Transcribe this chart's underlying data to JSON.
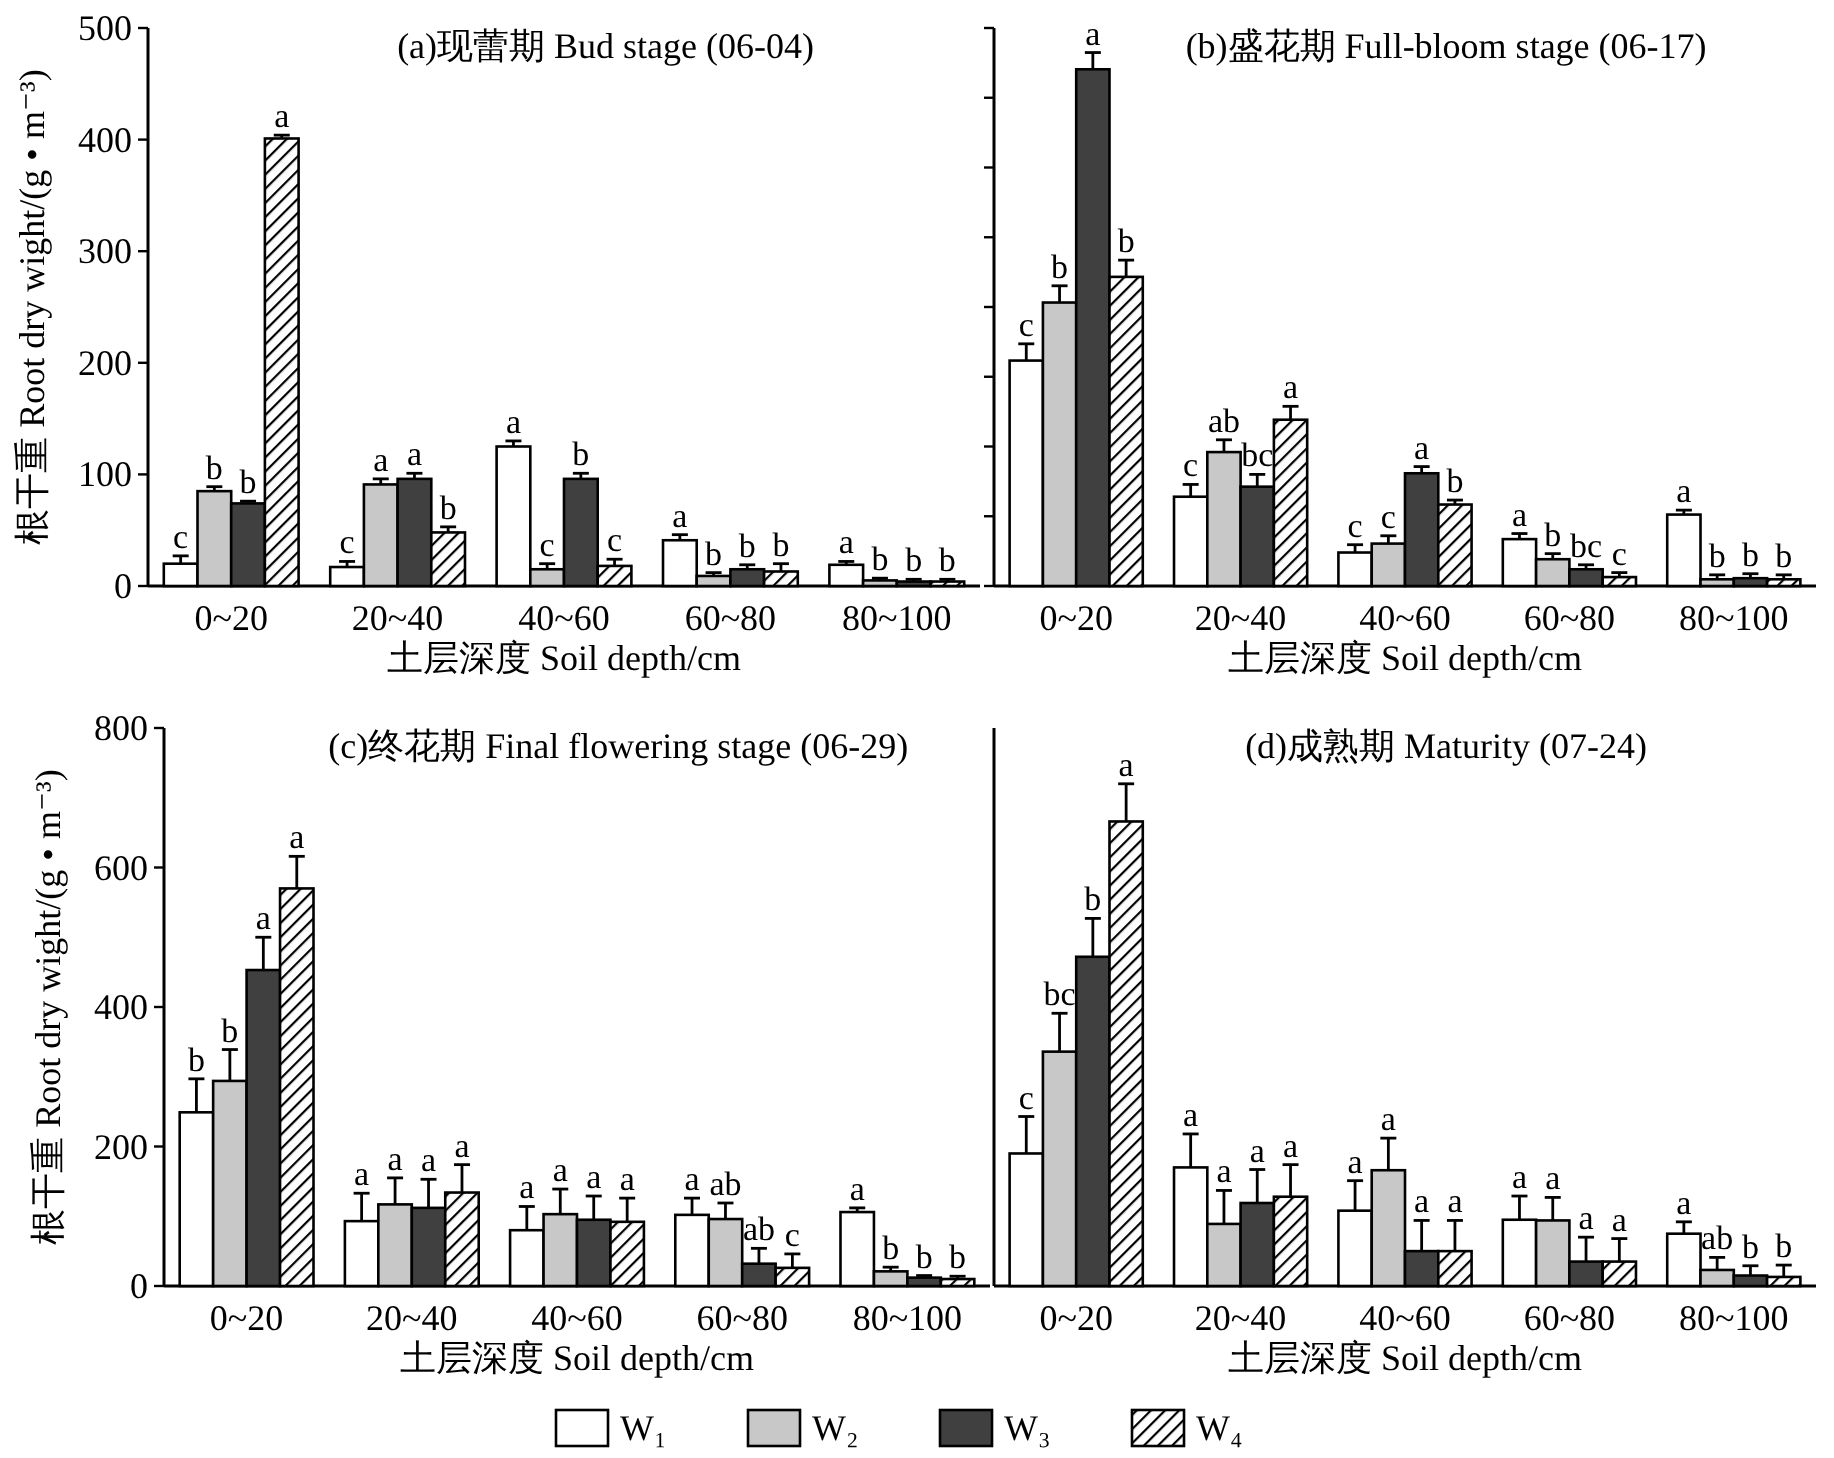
{
  "chart_data": [
    {
      "type": "bar",
      "title": "(a)现蕾期 Bud stage (06-04)",
      "xlabel": "土层深度 Soil depth/cm",
      "ylabel": "根干重 Root dry wight/(g • m⁻³)",
      "categories": [
        "0~20",
        "20~40",
        "40~60",
        "60~80",
        "80~100"
      ],
      "ylim": [
        0,
        500
      ],
      "yticks": [
        0,
        100,
        200,
        300,
        400,
        500
      ],
      "legend": "bottom",
      "series": [
        {
          "name": "W₁",
          "color": "#ffffff",
          "values": [
            20,
            17,
            125,
            41,
            19
          ],
          "errors": [
            [
              20,
              27
            ],
            [
              17,
              22
            ],
            [
              125,
              130
            ],
            [
              41,
              46
            ],
            [
              19,
              22
            ]
          ],
          "value_labels": [
            "c",
            "c",
            "a",
            "a",
            "a"
          ]
        },
        {
          "name": "W₂",
          "color": "#c8c8c8",
          "values": [
            85,
            91,
            15,
            9,
            5
          ],
          "errors": [
            [
              85,
              89
            ],
            [
              91,
              96
            ],
            [
              15,
              20
            ],
            [
              9,
              12
            ],
            [
              5,
              7
            ]
          ],
          "value_labels": [
            "b",
            "a",
            "c",
            "b",
            "b"
          ]
        },
        {
          "name": "W₃",
          "color": "#404040",
          "values": [
            74,
            96,
            96,
            15,
            4
          ],
          "errors": [
            [
              74,
              76
            ],
            [
              96,
              101
            ],
            [
              96,
              101
            ],
            [
              15,
              19
            ],
            [
              4,
              6
            ]
          ],
          "value_labels": [
            "b",
            "a",
            "b",
            "b",
            "b"
          ]
        },
        {
          "name": "W₄",
          "color": "#000000",
          "values": [
            401,
            48,
            18,
            13,
            4
          ],
          "errors": [
            [
              401,
              404
            ],
            [
              48,
              53
            ],
            [
              18,
              24
            ],
            [
              13,
              20
            ],
            [
              4,
              6
            ]
          ],
          "value_labels": [
            "a",
            "b",
            "c",
            "b",
            "b"
          ]
        }
      ]
    },
    {
      "type": "bar",
      "title": "(b)盛花期 Full-bloom stage (06-17)",
      "xlabel": "土层深度 Soil depth/cm",
      "categories": [
        "0~20",
        "20~40",
        "40~60",
        "60~80",
        "80~100"
      ],
      "ylim": [
        0,
        500
      ],
      "tick_labels": "x",
      "yticks": [
        {
          "value": 0,
          "label": null
        },
        {
          "value": 62.5,
          "label": null
        },
        {
          "value": 125,
          "label": null
        },
        {
          "value": 187.5,
          "label": null
        },
        {
          "value": 250,
          "label": null
        },
        {
          "value": 312.5,
          "label": null
        },
        {
          "value": 375,
          "label": null
        },
        {
          "value": 437.5,
          "label": null
        },
        {
          "value": 500,
          "label": null
        }
      ],
      "series": [
        {
          "color": "#ffffff",
          "values": [
            202,
            80,
            30,
            42,
            64
          ],
          "errors": [
            [
              202,
              217
            ],
            [
              80,
              91
            ],
            [
              30,
              37
            ],
            [
              42,
              47
            ],
            [
              64,
              68
            ]
          ],
          "value_labels": [
            "c",
            "c",
            "c",
            "a",
            "a"
          ]
        },
        {
          "color": "#c8c8c8",
          "values": [
            254,
            120,
            38,
            24,
            6
          ],
          "errors": [
            [
              254,
              269
            ],
            [
              120,
              131
            ],
            [
              38,
              45
            ],
            [
              24,
              29
            ],
            [
              6,
              10
            ]
          ],
          "value_labels": [
            "b",
            "ab",
            "c",
            "b",
            "b"
          ]
        },
        {
          "color": "#404040",
          "values": [
            463,
            89,
            101,
            15,
            7
          ],
          "errors": [
            [
              463,
              478
            ],
            [
              89,
              100
            ],
            [
              101,
              107
            ],
            [
              15,
              19
            ],
            [
              7,
              11
            ]
          ],
          "value_labels": [
            "a",
            "bc",
            "a",
            "bc",
            "b"
          ]
        },
        {
          "color": "#000000",
          "values": [
            277,
            149,
            73,
            8,
            6
          ],
          "errors": [
            [
              277,
              292
            ],
            [
              149,
              161
            ],
            [
              73,
              77
            ],
            [
              8,
              12
            ],
            [
              6,
              10
            ]
          ],
          "value_labels": [
            "b",
            "a",
            "b",
            "c",
            "b"
          ]
        }
      ]
    },
    {
      "type": "bar",
      "title": "(c)终花期 Final flowering stage (06-29)",
      "xlabel": "土层深度 Soil depth/cm",
      "ylabel": "根干重 Root dry wight/(g • m⁻³)",
      "categories": [
        "0~20",
        "20~40",
        "40~60",
        "60~80",
        "80~100"
      ],
      "ylim": [
        0,
        800
      ],
      "yticks": [
        0,
        200,
        400,
        600,
        800
      ],
      "series": [
        {
          "color": "#ffffff",
          "values": [
            249,
            93,
            80,
            102,
            106
          ],
          "errors": [
            [
              249,
              297
            ],
            [
              93,
              133
            ],
            [
              80,
              114
            ],
            [
              102,
              126
            ],
            [
              106,
              112
            ]
          ],
          "value_labels": [
            "b",
            "a",
            "a",
            "a",
            "a"
          ]
        },
        {
          "color": "#c8c8c8",
          "values": [
            294,
            117,
            103,
            96,
            21
          ],
          "errors": [
            [
              294,
              339
            ],
            [
              117,
              155
            ],
            [
              103,
              139
            ],
            [
              96,
              119
            ],
            [
              21,
              27
            ]
          ],
          "value_labels": [
            "b",
            "a",
            "a",
            "ab",
            "b"
          ]
        },
        {
          "color": "#404040",
          "values": [
            453,
            112,
            95,
            32,
            12
          ],
          "errors": [
            [
              453,
              500
            ],
            [
              112,
              153
            ],
            [
              95,
              129
            ],
            [
              32,
              54
            ],
            [
              12,
              15
            ]
          ],
          "value_labels": [
            "a",
            "a",
            "a",
            "ab",
            "b"
          ]
        },
        {
          "color": "#000000",
          "values": [
            570,
            134,
            92,
            26,
            10
          ],
          "errors": [
            [
              570,
              616
            ],
            [
              134,
              174
            ],
            [
              92,
              126
            ],
            [
              26,
              46
            ],
            [
              10,
              14
            ]
          ],
          "value_labels": [
            "a",
            "a",
            "a",
            "c",
            "b"
          ]
        }
      ]
    },
    {
      "type": "bar",
      "title": "(d)成熟期 Maturity (07-24)",
      "xlabel": "土层深度 Soil depth/cm",
      "categories": [
        "0~20",
        "20~40",
        "40~60",
        "60~80",
        "80~100"
      ],
      "ylim": [
        0,
        800
      ],
      "tick_labels": "x",
      "series": [
        {
          "color": "#ffffff",
          "values": [
            190,
            170,
            108,
            95,
            75
          ],
          "errors": [
            [
              190,
              243
            ],
            [
              170,
              218
            ],
            [
              108,
              151
            ],
            [
              95,
              129
            ],
            [
              75,
              92
            ]
          ],
          "value_labels": [
            "c",
            "a",
            "a",
            "a",
            "a"
          ]
        },
        {
          "color": "#c8c8c8",
          "values": [
            336,
            89,
            166,
            94,
            23
          ],
          "errors": [
            [
              336,
              391
            ],
            [
              89,
              137
            ],
            [
              166,
              212
            ],
            [
              94,
              127
            ],
            [
              23,
              41
            ]
          ],
          "value_labels": [
            "bc",
            "a",
            "a",
            "a",
            "ab"
          ]
        },
        {
          "color": "#404040",
          "values": [
            472,
            119,
            50,
            35,
            15
          ],
          "errors": [
            [
              472,
              527
            ],
            [
              119,
              167
            ],
            [
              50,
              94
            ],
            [
              35,
              70
            ],
            [
              15,
              29
            ]
          ],
          "value_labels": [
            "b",
            "a",
            "a",
            "a",
            "b"
          ]
        },
        {
          "color": "#000000",
          "values": [
            666,
            128,
            50,
            35,
            13
          ],
          "errors": [
            [
              666,
              720
            ],
            [
              128,
              174
            ],
            [
              50,
              94
            ],
            [
              35,
              68
            ],
            [
              13,
              30
            ]
          ],
          "value_labels": [
            "a",
            "a",
            "a",
            "a",
            "b"
          ]
        }
      ]
    }
  ]
}
